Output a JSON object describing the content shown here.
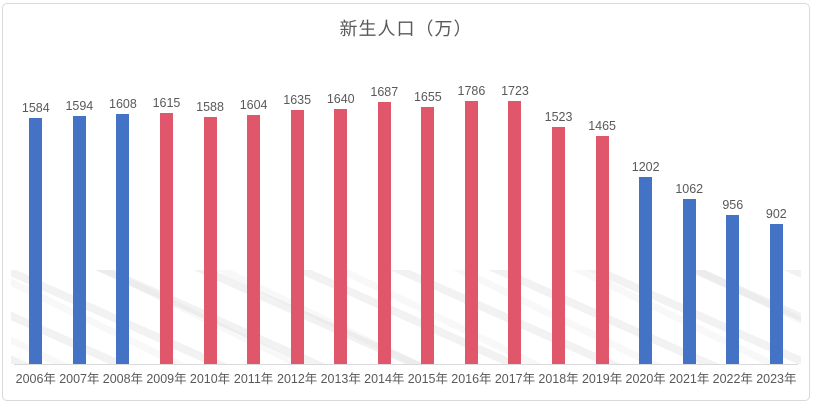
{
  "chart_data": {
    "type": "bar",
    "title": "新生人口（万）",
    "categories": [
      "2006年",
      "2007年",
      "2008年",
      "2009年",
      "2010年",
      "2011年",
      "2012年",
      "2013年",
      "2014年",
      "2015年",
      "2016年",
      "2017年",
      "2018年",
      "2019年",
      "2020年",
      "2021年",
      "2022年",
      "2023年"
    ],
    "values": [
      1584,
      1594,
      1608,
      1615,
      1588,
      1604,
      1635,
      1640,
      1687,
      1655,
      1786,
      1723,
      1523,
      1465,
      1202,
      1062,
      956,
      902
    ],
    "bar_colors": [
      "blue",
      "blue",
      "blue",
      "red",
      "red",
      "red",
      "red",
      "red",
      "red",
      "red",
      "red",
      "red",
      "red",
      "red",
      "blue",
      "blue",
      "blue",
      "blue"
    ],
    "palette": {
      "blue": "#4472C4",
      "red": "#E0566B"
    },
    "xlabel": "",
    "ylabel": "",
    "ylim": [
      0,
      1800
    ],
    "grid": false,
    "legend": "none",
    "data_labels": true,
    "axis_color": "#D9D9D9",
    "label_color": "#595959"
  }
}
